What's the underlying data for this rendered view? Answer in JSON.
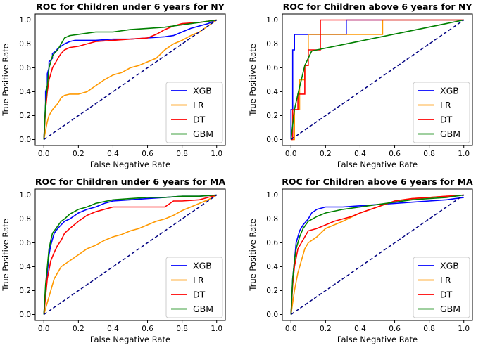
{
  "colors": {
    "XGB": "#0000ff",
    "LR": "#ff9900",
    "DT": "#ff0000",
    "GBM": "#008000",
    "diagonal": "#000080"
  },
  "chart_data": [
    {
      "type": "line",
      "title": "ROC for Children under 6 years for NY",
      "xlabel": "False Negative Rate",
      "ylabel": "True Positive Rate",
      "xlim": [
        -0.05,
        1.05
      ],
      "ylim": [
        -0.05,
        1.05
      ],
      "xticks": [
        "0.0",
        "0.2",
        "0.4",
        "0.6",
        "0.8",
        "1.0"
      ],
      "yticks": [
        "0.0",
        "0.2",
        "0.4",
        "0.6",
        "0.8",
        "1.0"
      ],
      "legend_position": "lower-right",
      "series": [
        {
          "name": "XGB",
          "x": [
            0,
            0.01,
            0.01,
            0.02,
            0.02,
            0.03,
            0.03,
            0.05,
            0.05,
            0.07,
            0.08,
            0.1,
            0.12,
            0.15,
            0.18,
            0.2,
            0.25,
            0.3,
            0.4,
            0.5,
            0.6,
            0.7,
            0.75,
            0.8,
            0.85,
            0.9,
            0.95,
            1.0
          ],
          "y": [
            0,
            0.3,
            0.4,
            0.45,
            0.55,
            0.6,
            0.65,
            0.68,
            0.72,
            0.74,
            0.76,
            0.78,
            0.8,
            0.82,
            0.83,
            0.83,
            0.83,
            0.83,
            0.84,
            0.84,
            0.85,
            0.86,
            0.87,
            0.9,
            0.93,
            0.95,
            0.97,
            1.0
          ]
        },
        {
          "name": "LR",
          "x": [
            0,
            0.02,
            0.03,
            0.05,
            0.08,
            0.1,
            0.12,
            0.15,
            0.2,
            0.25,
            0.3,
            0.35,
            0.4,
            0.45,
            0.5,
            0.55,
            0.6,
            0.65,
            0.7,
            0.75,
            0.8,
            0.85,
            0.9,
            0.95,
            1.0
          ],
          "y": [
            0,
            0.15,
            0.2,
            0.25,
            0.3,
            0.35,
            0.37,
            0.38,
            0.38,
            0.4,
            0.45,
            0.5,
            0.54,
            0.56,
            0.6,
            0.62,
            0.65,
            0.68,
            0.75,
            0.8,
            0.83,
            0.87,
            0.9,
            0.95,
            1.0
          ]
        },
        {
          "name": "DT",
          "x": [
            0,
            0.01,
            0.02,
            0.03,
            0.04,
            0.05,
            0.07,
            0.09,
            0.1,
            0.12,
            0.15,
            0.2,
            0.25,
            0.3,
            0.4,
            0.5,
            0.6,
            0.65,
            0.7,
            0.75,
            0.8,
            0.9,
            0.95,
            1.0
          ],
          "y": [
            0,
            0.25,
            0.4,
            0.5,
            0.55,
            0.6,
            0.65,
            0.7,
            0.72,
            0.75,
            0.77,
            0.78,
            0.8,
            0.82,
            0.83,
            0.84,
            0.85,
            0.88,
            0.92,
            0.95,
            0.97,
            0.98,
            0.99,
            1.0
          ]
        },
        {
          "name": "GBM",
          "x": [
            0,
            0.01,
            0.02,
            0.03,
            0.04,
            0.05,
            0.06,
            0.08,
            0.1,
            0.12,
            0.15,
            0.2,
            0.3,
            0.4,
            0.5,
            0.6,
            0.7,
            0.8,
            0.9,
            1.0
          ],
          "y": [
            0,
            0.3,
            0.45,
            0.6,
            0.65,
            0.7,
            0.72,
            0.75,
            0.8,
            0.85,
            0.87,
            0.88,
            0.9,
            0.9,
            0.92,
            0.93,
            0.94,
            0.96,
            0.98,
            1.0
          ]
        },
        {
          "name": "",
          "x": [
            0,
            1
          ],
          "y": [
            0,
            1
          ]
        }
      ]
    },
    {
      "type": "line",
      "title": "ROC for Children above 6 years for NY",
      "xlabel": "False Negative Rate",
      "ylabel": "True Positive Rate",
      "xlim": [
        -0.05,
        1.05
      ],
      "ylim": [
        -0.05,
        1.05
      ],
      "xticks": [
        "0.0",
        "0.2",
        "0.4",
        "0.6",
        "0.8",
        "1.0"
      ],
      "yticks": [
        "0.0",
        "0.2",
        "0.4",
        "0.6",
        "0.8",
        "1.0"
      ],
      "legend_position": "lower-right",
      "series": [
        {
          "name": "XGB",
          "x": [
            0,
            0,
            0.01,
            0.01,
            0.02,
            0.02,
            0.12,
            0.12,
            0.32,
            0.32,
            1.0
          ],
          "y": [
            0,
            0.25,
            0.25,
            0.75,
            0.75,
            0.88,
            0.88,
            0.88,
            0.88,
            1.0,
            1.0
          ]
        },
        {
          "name": "LR",
          "x": [
            0,
            0.02,
            0.02,
            0.05,
            0.05,
            0.08,
            0.08,
            0.1,
            0.1,
            0.53,
            0.53,
            1.0
          ],
          "y": [
            0,
            0.0,
            0.25,
            0.25,
            0.5,
            0.5,
            0.62,
            0.62,
            0.88,
            0.88,
            1.0,
            1.0
          ]
        },
        {
          "name": "DT",
          "x": [
            0,
            0.01,
            0.01,
            0.04,
            0.04,
            0.08,
            0.08,
            0.1,
            0.1,
            0.17,
            0.17,
            1.0
          ],
          "y": [
            0,
            0.0,
            0.25,
            0.25,
            0.38,
            0.38,
            0.62,
            0.62,
            0.75,
            0.75,
            1.0,
            1.0
          ]
        },
        {
          "name": "GBM",
          "x": [
            0,
            0.01,
            0.02,
            0.04,
            0.06,
            0.08,
            0.1,
            0.12,
            0.15,
            1.0
          ],
          "y": [
            0,
            0.12,
            0.25,
            0.38,
            0.5,
            0.62,
            0.68,
            0.74,
            0.75,
            1.0
          ]
        },
        {
          "name": "",
          "x": [
            0,
            1
          ],
          "y": [
            0,
            1
          ]
        }
      ]
    },
    {
      "type": "line",
      "title": "ROC for Children under 6 years for MA",
      "xlabel": "False Negative Rate",
      "ylabel": "True Positive Rate",
      "xlim": [
        -0.05,
        1.05
      ],
      "ylim": [
        -0.05,
        1.05
      ],
      "xticks": [
        "0.0",
        "0.2",
        "0.4",
        "0.6",
        "0.8",
        "1.0"
      ],
      "yticks": [
        "0.0",
        "0.2",
        "0.4",
        "0.6",
        "0.8",
        "1.0"
      ],
      "legend_position": "lower-right",
      "series": [
        {
          "name": "XGB",
          "x": [
            0,
            0.01,
            0.02,
            0.03,
            0.04,
            0.05,
            0.06,
            0.08,
            0.1,
            0.12,
            0.15,
            0.2,
            0.25,
            0.3,
            0.35,
            0.4,
            0.5,
            0.6,
            0.7,
            0.8,
            0.9,
            1.0
          ],
          "y": [
            0,
            0.2,
            0.35,
            0.5,
            0.58,
            0.63,
            0.68,
            0.72,
            0.75,
            0.78,
            0.8,
            0.85,
            0.88,
            0.9,
            0.93,
            0.95,
            0.96,
            0.97,
            0.98,
            0.99,
            0.99,
            1.0
          ]
        },
        {
          "name": "LR",
          "x": [
            0,
            0.02,
            0.04,
            0.06,
            0.1,
            0.15,
            0.2,
            0.25,
            0.3,
            0.35,
            0.4,
            0.45,
            0.5,
            0.55,
            0.6,
            0.65,
            0.7,
            0.75,
            0.8,
            0.85,
            0.9,
            0.95,
            1.0
          ],
          "y": [
            0,
            0.1,
            0.2,
            0.3,
            0.4,
            0.45,
            0.5,
            0.55,
            0.58,
            0.62,
            0.65,
            0.67,
            0.7,
            0.72,
            0.75,
            0.78,
            0.8,
            0.83,
            0.87,
            0.9,
            0.93,
            0.96,
            1.0
          ]
        },
        {
          "name": "DT",
          "x": [
            0,
            0.01,
            0.02,
            0.04,
            0.06,
            0.08,
            0.1,
            0.12,
            0.15,
            0.2,
            0.25,
            0.3,
            0.35,
            0.4,
            0.5,
            0.6,
            0.7,
            0.75,
            0.8,
            0.9,
            1.0
          ],
          "y": [
            0,
            0.15,
            0.3,
            0.45,
            0.52,
            0.58,
            0.62,
            0.68,
            0.72,
            0.78,
            0.83,
            0.86,
            0.88,
            0.9,
            0.9,
            0.9,
            0.9,
            0.95,
            0.95,
            0.96,
            1.0
          ]
        },
        {
          "name": "GBM",
          "x": [
            0,
            0.01,
            0.02,
            0.03,
            0.04,
            0.05,
            0.07,
            0.1,
            0.12,
            0.15,
            0.2,
            0.25,
            0.3,
            0.4,
            0.5,
            0.6,
            0.7,
            0.8,
            0.9,
            1.0
          ],
          "y": [
            0,
            0.25,
            0.4,
            0.55,
            0.62,
            0.68,
            0.72,
            0.78,
            0.8,
            0.84,
            0.88,
            0.9,
            0.93,
            0.96,
            0.97,
            0.98,
            0.98,
            0.99,
            0.99,
            1.0
          ]
        },
        {
          "name": "",
          "x": [
            0,
            1
          ],
          "y": [
            0,
            1
          ]
        }
      ]
    },
    {
      "type": "line",
      "title": "ROC for Children above 6 years for MA",
      "xlabel": "False Negative Rate",
      "ylabel": "True Positive Rate",
      "xlim": [
        -0.05,
        1.05
      ],
      "ylim": [
        -0.05,
        1.05
      ],
      "xticks": [
        "0.0",
        "0.2",
        "0.4",
        "0.6",
        "0.8",
        "1.0"
      ],
      "yticks": [
        "0.0",
        "0.2",
        "0.4",
        "0.6",
        "0.8",
        "1.0"
      ],
      "legend_position": "lower-right",
      "series": [
        {
          "name": "XGB",
          "x": [
            0,
            0.01,
            0.02,
            0.03,
            0.04,
            0.05,
            0.07,
            0.1,
            0.12,
            0.15,
            0.2,
            0.3,
            0.4,
            0.5,
            0.6,
            0.7,
            0.8,
            0.9,
            1.0
          ],
          "y": [
            0,
            0.3,
            0.45,
            0.6,
            0.65,
            0.7,
            0.75,
            0.8,
            0.85,
            0.88,
            0.9,
            0.9,
            0.91,
            0.92,
            0.93,
            0.94,
            0.95,
            0.96,
            0.98
          ]
        },
        {
          "name": "LR",
          "x": [
            0,
            0.02,
            0.04,
            0.06,
            0.08,
            0.1,
            0.15,
            0.2,
            0.25,
            0.3,
            0.4,
            0.5,
            0.6,
            0.7,
            0.8,
            0.9,
            1.0
          ],
          "y": [
            0,
            0.2,
            0.35,
            0.45,
            0.55,
            0.6,
            0.65,
            0.72,
            0.75,
            0.78,
            0.85,
            0.9,
            0.95,
            0.97,
            0.98,
            0.99,
            1.0
          ]
        },
        {
          "name": "DT",
          "x": [
            0,
            0.01,
            0.02,
            0.04,
            0.06,
            0.08,
            0.1,
            0.15,
            0.2,
            0.25,
            0.3,
            0.35,
            0.4,
            0.5,
            0.6,
            0.7,
            0.8,
            0.9,
            1.0
          ],
          "y": [
            0,
            0.25,
            0.4,
            0.55,
            0.6,
            0.65,
            0.7,
            0.72,
            0.75,
            0.78,
            0.8,
            0.82,
            0.85,
            0.9,
            0.95,
            0.97,
            0.98,
            0.99,
            1.0
          ]
        },
        {
          "name": "GBM",
          "x": [
            0,
            0.01,
            0.02,
            0.03,
            0.05,
            0.07,
            0.1,
            0.15,
            0.2,
            0.3,
            0.4,
            0.5,
            0.6,
            0.7,
            0.8,
            0.9,
            1.0
          ],
          "y": [
            0,
            0.3,
            0.45,
            0.55,
            0.65,
            0.72,
            0.78,
            0.82,
            0.85,
            0.88,
            0.9,
            0.92,
            0.94,
            0.96,
            0.97,
            0.98,
            1.0
          ]
        },
        {
          "name": "",
          "x": [
            0,
            1
          ],
          "y": [
            0,
            1
          ]
        }
      ]
    }
  ]
}
